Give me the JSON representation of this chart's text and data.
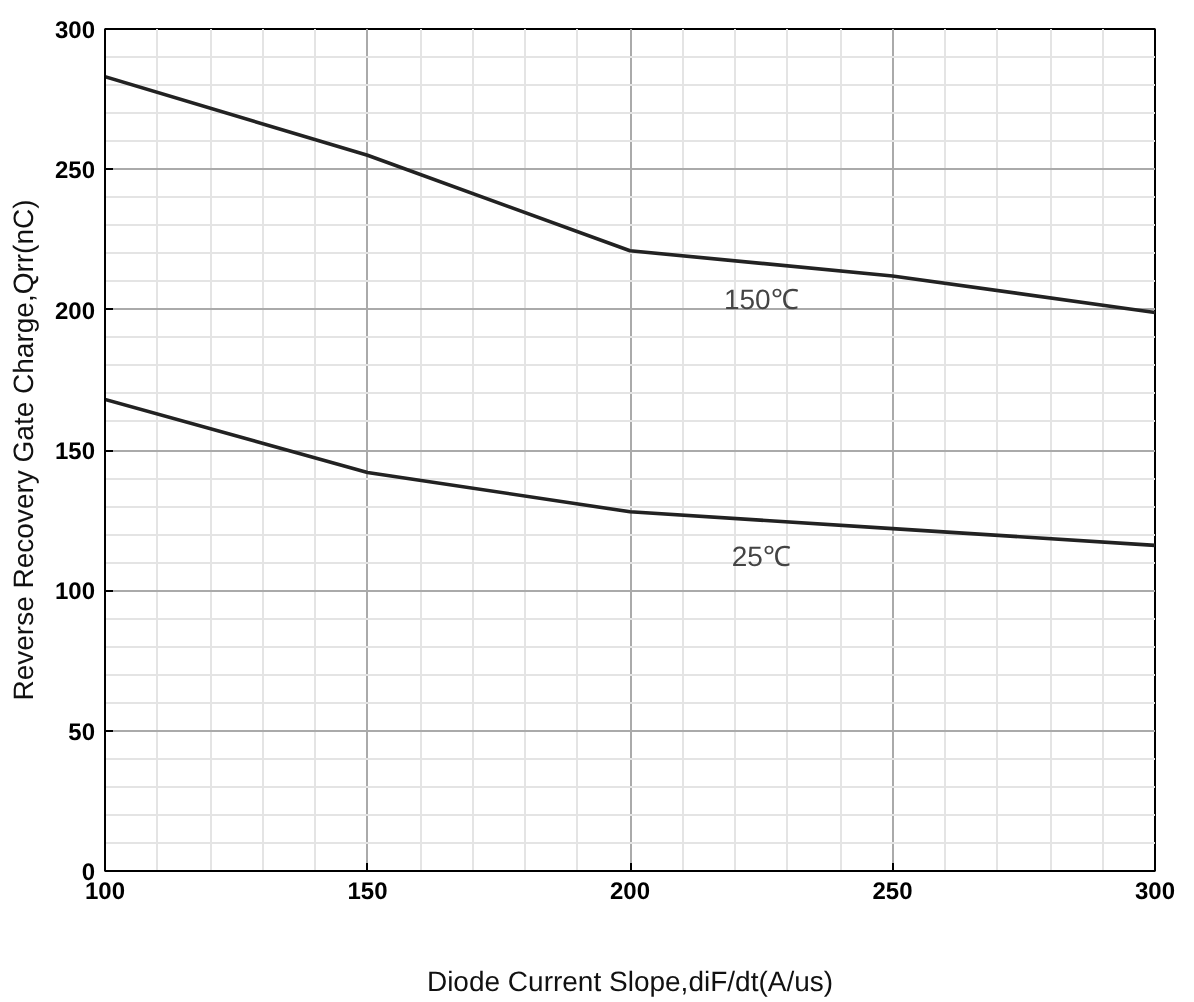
{
  "chart_data": {
    "type": "line",
    "xlabel": "Diode Current Slope,diF/dt(A/us)",
    "ylabel": "Reverse Recovery Gate Charge,Qrr(nC)",
    "x": [
      100,
      150,
      200,
      250,
      300
    ],
    "series": [
      {
        "name": "150℃",
        "color": "#222222",
        "values": [
          283,
          255,
          221,
          212,
          199
        ]
      },
      {
        "name": "25℃",
        "color": "#222222",
        "values": [
          168,
          142,
          128,
          122,
          116
        ]
      }
    ],
    "xlim": [
      100,
      300
    ],
    "xticks": [
      100,
      150,
      200,
      250,
      300
    ],
    "ylim": [
      0,
      300
    ],
    "yticks": [
      0,
      50,
      100,
      150,
      200,
      250,
      300
    ],
    "grid": true,
    "marker": "none",
    "line_style": "solid"
  }
}
